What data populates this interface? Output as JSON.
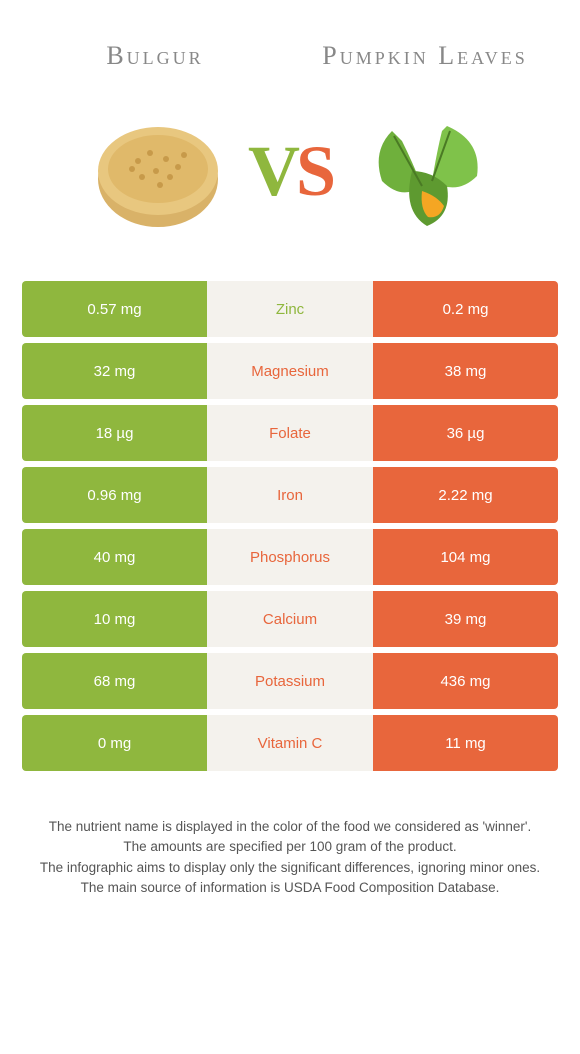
{
  "header": {
    "left": "Bulgur",
    "right": "Pumpkin Leaves"
  },
  "vs": {
    "v": "V",
    "s": "S"
  },
  "colors": {
    "green": "#8fb73e",
    "orange": "#e8663c",
    "row_mid_bg": "#f4f2ed",
    "page_bg": "#ffffff",
    "header_text": "#888888",
    "footer_text": "#555555"
  },
  "rows": [
    {
      "left": "0.57 mg",
      "label": "Zinc",
      "right": "0.2 mg",
      "winner": "green"
    },
    {
      "left": "32 mg",
      "label": "Magnesium",
      "right": "38 mg",
      "winner": "orange"
    },
    {
      "left": "18 µg",
      "label": "Folate",
      "right": "36 µg",
      "winner": "orange"
    },
    {
      "left": "0.96 mg",
      "label": "Iron",
      "right": "2.22 mg",
      "winner": "orange"
    },
    {
      "left": "40 mg",
      "label": "Phosphorus",
      "right": "104 mg",
      "winner": "orange"
    },
    {
      "left": "10 mg",
      "label": "Calcium",
      "right": "39 mg",
      "winner": "orange"
    },
    {
      "left": "68 mg",
      "label": "Potassium",
      "right": "436 mg",
      "winner": "orange"
    },
    {
      "left": "0 mg",
      "label": "Vitamin C",
      "right": "11 mg",
      "winner": "orange"
    }
  ],
  "footer": {
    "line1": "The nutrient name is displayed in the color of the food we considered as 'winner'.",
    "line2": "The amounts are specified per 100 gram of the product.",
    "line3": "The infographic aims to display only the significant differences, ignoring minor ones.",
    "line4": "The main source of information is USDA Food Composition Database."
  }
}
